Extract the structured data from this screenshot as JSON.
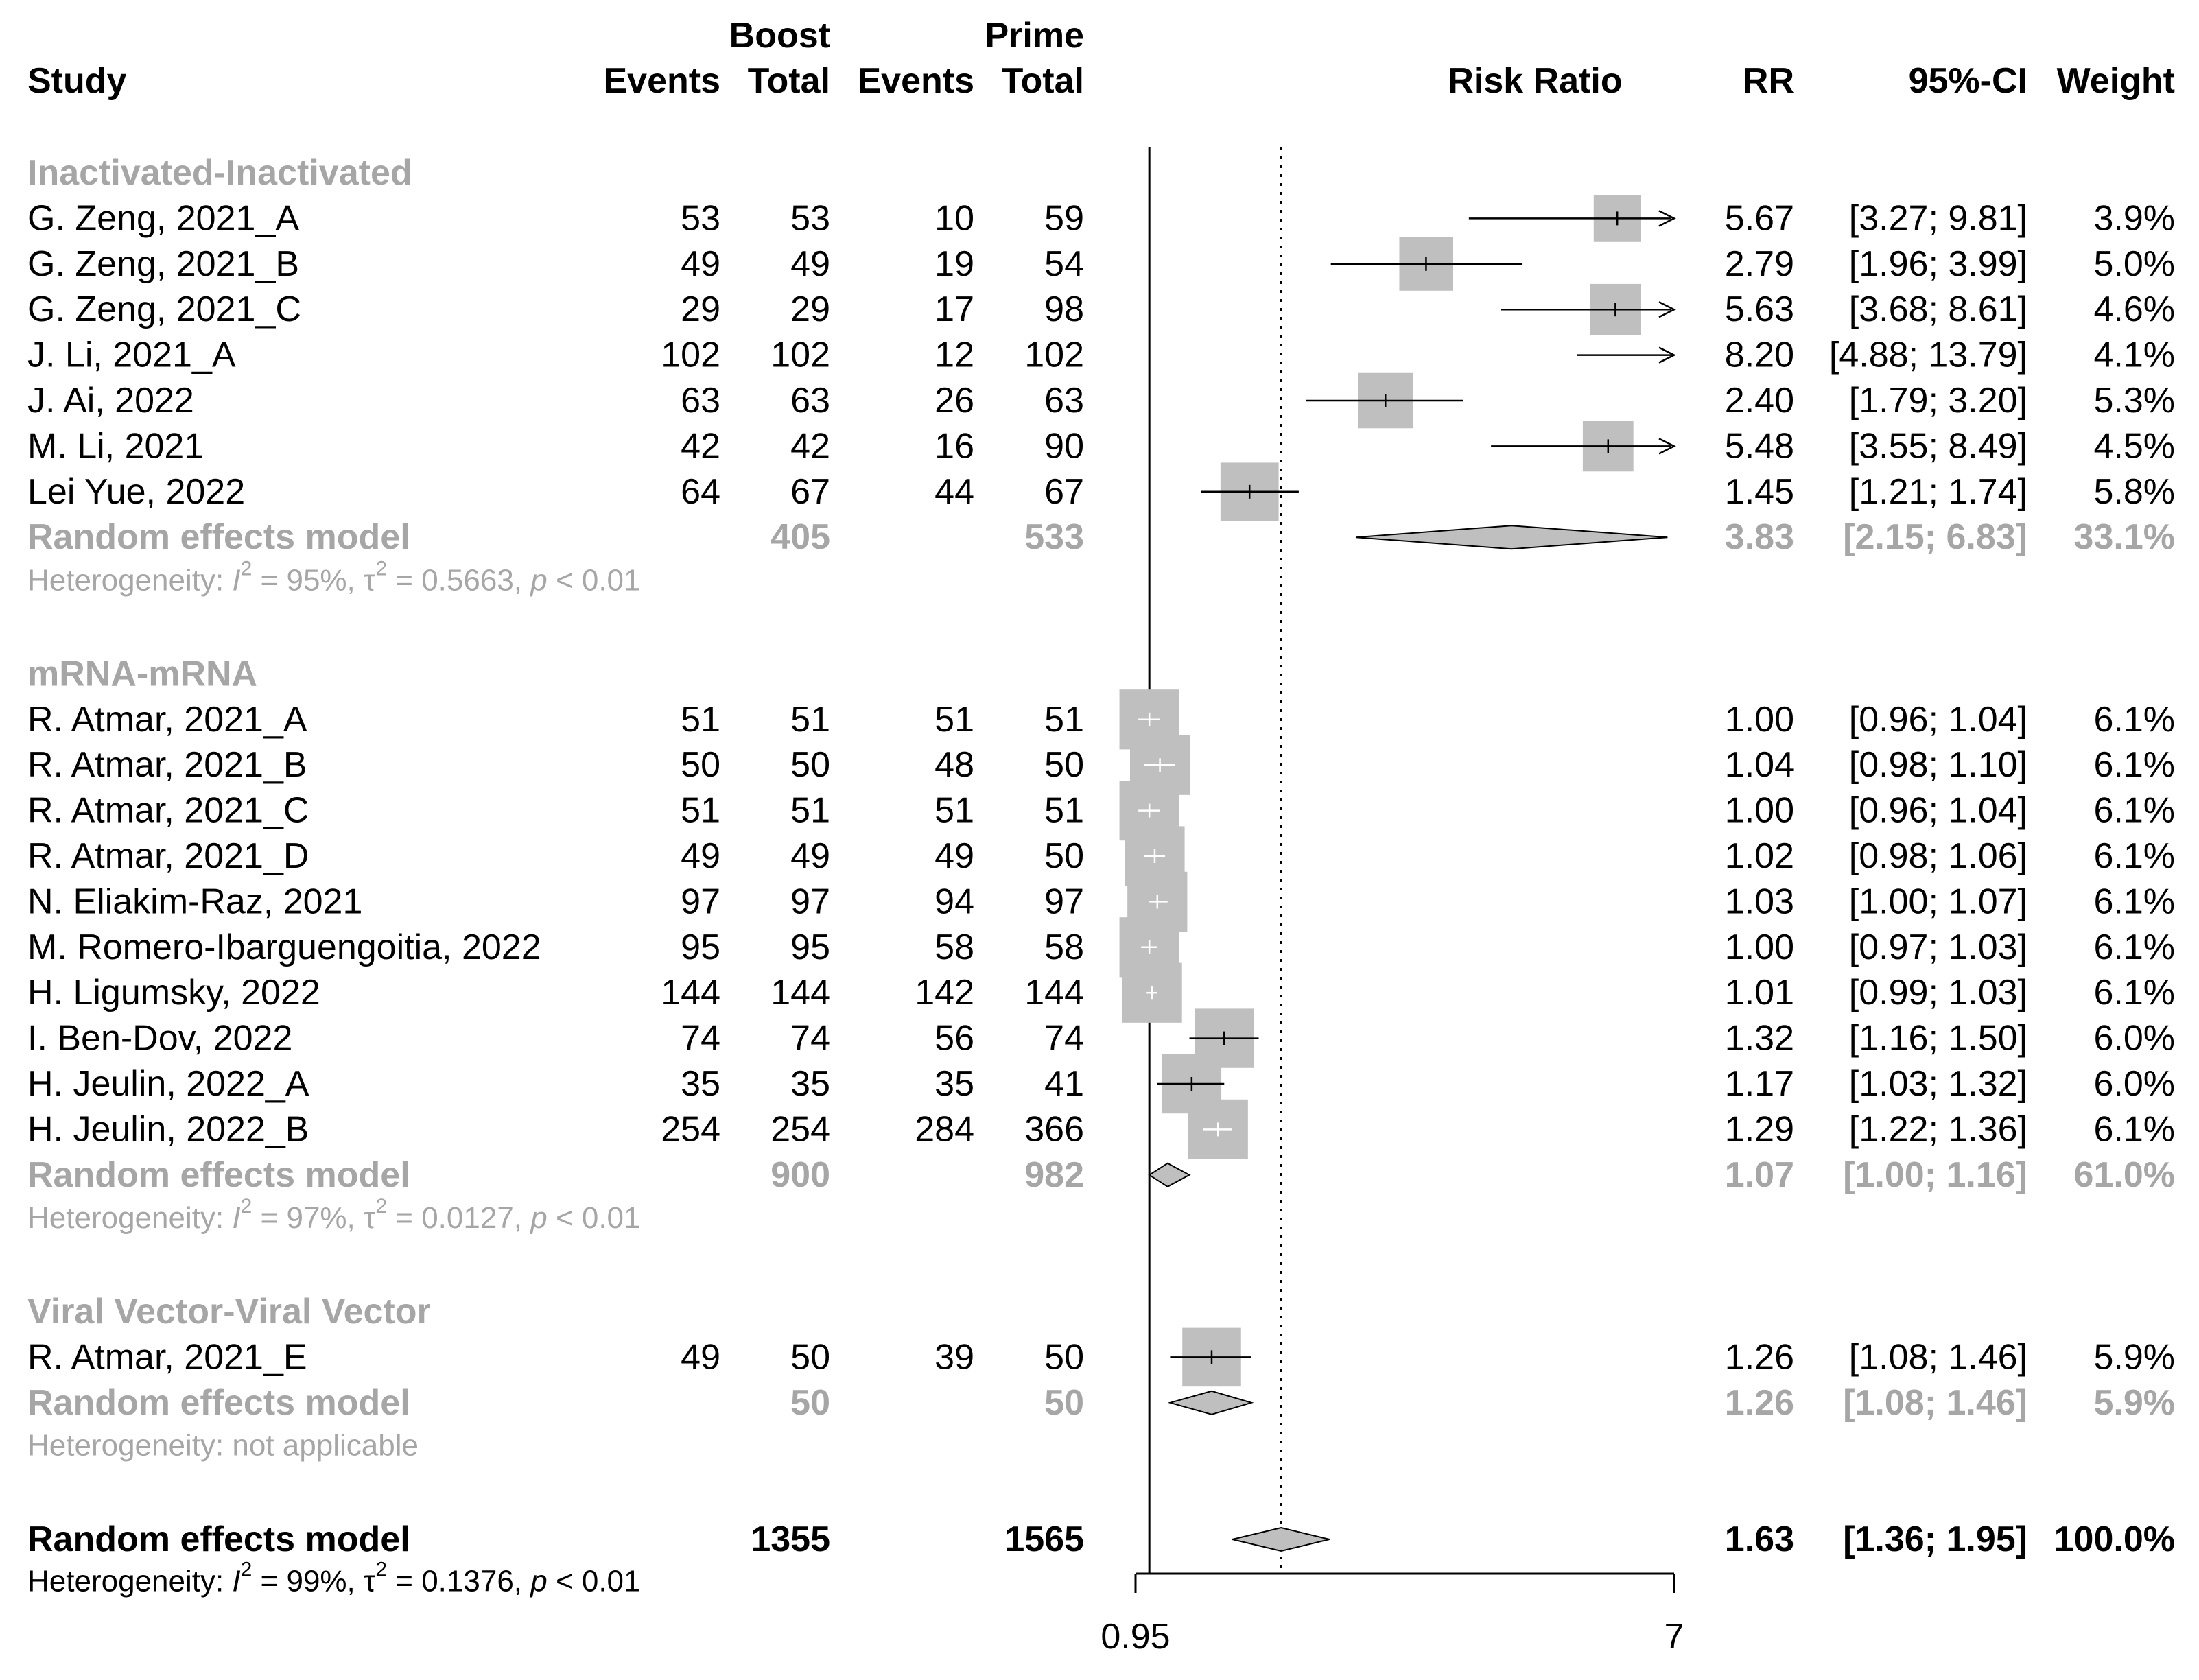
{
  "chart_data": {
    "type": "forest",
    "measure": "Risk Ratio",
    "axis": {
      "scale": "log",
      "xlim": [
        0.95,
        7
      ],
      "ticks": [
        "0.95",
        "7"
      ],
      "null_line": 1,
      "pooled_line": 1.63
    },
    "headers": {
      "study": "Study",
      "boost": "Boost",
      "prime": "Prime",
      "events": "Events",
      "total": "Total",
      "plot": "Risk Ratio",
      "rr": "RR",
      "ci": "95%-CI",
      "weight": "Weight"
    },
    "groups": [
      {
        "name": "Inactivated-Inactivated",
        "studies": [
          {
            "study": "G. Zeng, 2021_A",
            "be": "53",
            "bt": "53",
            "pe": "10",
            "pt": "59",
            "rr": 5.67,
            "lo": 3.27,
            "hi": 9.81,
            "rr_text": "5.67",
            "ci_text": "[3.27;  9.81]",
            "weight": "3.9%",
            "w": 3.9
          },
          {
            "study": "G. Zeng, 2021_B",
            "be": "49",
            "bt": "49",
            "pe": "19",
            "pt": "54",
            "rr": 2.79,
            "lo": 1.96,
            "hi": 3.99,
            "rr_text": "2.79",
            "ci_text": "[1.96;  3.99]",
            "weight": "5.0%",
            "w": 5.0
          },
          {
            "study": "G. Zeng, 2021_C",
            "be": "29",
            "bt": "29",
            "pe": "17",
            "pt": "98",
            "rr": 5.63,
            "lo": 3.68,
            "hi": 8.61,
            "rr_text": "5.63",
            "ci_text": "[3.68;  8.61]",
            "weight": "4.6%",
            "w": 4.6
          },
          {
            "study": "J. Li, 2021_A",
            "be": "102",
            "bt": "102",
            "pe": "12",
            "pt": "102",
            "rr": 8.2,
            "lo": 4.88,
            "hi": 13.79,
            "rr_text": "8.20",
            "ci_text": "[4.88; 13.79]",
            "weight": "4.1%",
            "w": 4.1
          },
          {
            "study": "J. Ai, 2022",
            "be": "63",
            "bt": "63",
            "pe": "26",
            "pt": "63",
            "rr": 2.4,
            "lo": 1.79,
            "hi": 3.2,
            "rr_text": "2.40",
            "ci_text": "[1.79;  3.20]",
            "weight": "5.3%",
            "w": 5.3
          },
          {
            "study": "M. Li, 2021",
            "be": "42",
            "bt": "42",
            "pe": "16",
            "pt": "90",
            "rr": 5.48,
            "lo": 3.55,
            "hi": 8.49,
            "rr_text": "5.48",
            "ci_text": "[3.55;  8.49]",
            "weight": "4.5%",
            "w": 4.5
          },
          {
            "study": "Lei Yue, 2022",
            "be": "64",
            "bt": "67",
            "pe": "44",
            "pt": "67",
            "rr": 1.45,
            "lo": 1.21,
            "hi": 1.74,
            "rr_text": "1.45",
            "ci_text": "[1.21;  1.74]",
            "weight": "5.8%",
            "w": 5.8
          }
        ],
        "pooled": {
          "label": "Random effects model",
          "bt": "405",
          "pt": "533",
          "rr": 3.83,
          "lo": 2.15,
          "hi": 6.83,
          "rr_text": "3.83",
          "ci_text": "[2.15;  6.83]",
          "weight": "33.1%"
        },
        "heterogeneity": {
          "prefix": "Heterogeneity: ",
          "i2": "I",
          "sup": "2",
          "mid": " = 95%, τ",
          "tau_sup": "2",
          "tail": " = 0.5663, ",
          "p": "p",
          "pval": " < 0.01"
        }
      },
      {
        "name": "mRNA-mRNA",
        "studies": [
          {
            "study": "R. Atmar, 2021_A",
            "be": "51",
            "bt": "51",
            "pe": "51",
            "pt": "51",
            "rr": 1.0,
            "lo": 0.96,
            "hi": 1.04,
            "rr_text": "1.00",
            "ci_text": "[0.96;  1.04]",
            "weight": "6.1%",
            "w": 6.1
          },
          {
            "study": "R. Atmar, 2021_B",
            "be": "50",
            "bt": "50",
            "pe": "48",
            "pt": "50",
            "rr": 1.04,
            "lo": 0.98,
            "hi": 1.1,
            "rr_text": "1.04",
            "ci_text": "[0.98;  1.10]",
            "weight": "6.1%",
            "w": 6.1
          },
          {
            "study": "R. Atmar, 2021_C",
            "be": "51",
            "bt": "51",
            "pe": "51",
            "pt": "51",
            "rr": 1.0,
            "lo": 0.96,
            "hi": 1.04,
            "rr_text": "1.00",
            "ci_text": "[0.96;  1.04]",
            "weight": "6.1%",
            "w": 6.1
          },
          {
            "study": "R. Atmar, 2021_D",
            "be": "49",
            "bt": "49",
            "pe": "49",
            "pt": "50",
            "rr": 1.02,
            "lo": 0.98,
            "hi": 1.06,
            "rr_text": "1.02",
            "ci_text": "[0.98;  1.06]",
            "weight": "6.1%",
            "w": 6.1
          },
          {
            "study": "N. Eliakim-Raz, 2021",
            "be": "97",
            "bt": "97",
            "pe": "94",
            "pt": "97",
            "rr": 1.03,
            "lo": 1.0,
            "hi": 1.07,
            "rr_text": "1.03",
            "ci_text": "[1.00;  1.07]",
            "weight": "6.1%",
            "w": 6.1
          },
          {
            "study": "M. Romero-Ibarguengoitia, 2022",
            "be": "95",
            "bt": "95",
            "pe": "58",
            "pt": "58",
            "rr": 1.0,
            "lo": 0.97,
            "hi": 1.03,
            "rr_text": "1.00",
            "ci_text": "[0.97;  1.03]",
            "weight": "6.1%",
            "w": 6.1
          },
          {
            "study": "H. Ligumsky, 2022",
            "be": "144",
            "bt": "144",
            "pe": "142",
            "pt": "144",
            "rr": 1.01,
            "lo": 0.99,
            "hi": 1.03,
            "rr_text": "1.01",
            "ci_text": "[0.99;  1.03]",
            "weight": "6.1%",
            "w": 6.1
          },
          {
            "study": "I. Ben-Dov, 2022",
            "be": "74",
            "bt": "74",
            "pe": "56",
            "pt": "74",
            "rr": 1.32,
            "lo": 1.16,
            "hi": 1.5,
            "rr_text": "1.32",
            "ci_text": "[1.16;  1.50]",
            "weight": "6.0%",
            "w": 6.0
          },
          {
            "study": "H. Jeulin, 2022_A",
            "be": "35",
            "bt": "35",
            "pe": "35",
            "pt": "41",
            "rr": 1.17,
            "lo": 1.03,
            "hi": 1.32,
            "rr_text": "1.17",
            "ci_text": "[1.03;  1.32]",
            "weight": "6.0%",
            "w": 6.0
          },
          {
            "study": "H. Jeulin, 2022_B",
            "be": "254",
            "bt": "254",
            "pe": "284",
            "pt": "366",
            "rr": 1.29,
            "lo": 1.22,
            "hi": 1.36,
            "rr_text": "1.29",
            "ci_text": "[1.22;  1.36]",
            "weight": "6.1%",
            "w": 6.1
          }
        ],
        "pooled": {
          "label": "Random effects model",
          "bt": "900",
          "pt": "982",
          "rr": 1.07,
          "lo": 1.0,
          "hi": 1.16,
          "rr_text": "1.07",
          "ci_text": "[1.00;  1.16]",
          "weight": "61.0%"
        },
        "heterogeneity": {
          "prefix": "Heterogeneity: ",
          "i2": "I",
          "sup": "2",
          "mid": " = 97%, τ",
          "tau_sup": "2",
          "tail": " = 0.0127, ",
          "p": "p",
          "pval": " < 0.01"
        }
      },
      {
        "name": "Viral Vector-Viral Vector",
        "studies": [
          {
            "study": "R. Atmar, 2021_E",
            "be": "49",
            "bt": "50",
            "pe": "39",
            "pt": "50",
            "rr": 1.26,
            "lo": 1.08,
            "hi": 1.46,
            "rr_text": "1.26",
            "ci_text": "[1.08;  1.46]",
            "weight": "5.9%",
            "w": 5.9
          }
        ],
        "pooled": {
          "label": "Random effects model",
          "bt": "50",
          "pt": "50",
          "rr": 1.26,
          "lo": 1.08,
          "hi": 1.46,
          "rr_text": "1.26",
          "ci_text": "[1.08;  1.46]",
          "weight": "5.9%"
        },
        "heterogeneity": {
          "text": "Heterogeneity: not applicable"
        }
      }
    ],
    "overall": {
      "label": "Random effects model",
      "bt": "1355",
      "pt": "1565",
      "rr": 1.63,
      "lo": 1.36,
      "hi": 1.95,
      "rr_text": "1.63",
      "ci_text": "[1.36;  1.95]",
      "weight": "100.0%",
      "heterogeneity": {
        "prefix": "Heterogeneity: ",
        "i2": "I",
        "sup": "2",
        "mid": " = 99%, τ",
        "tau_sup": "2",
        "tail": " = 0.1376, ",
        "p": "p",
        "pval": " < 0.01"
      }
    },
    "colors": {
      "text": "#000000",
      "subgroup": "#a6a6a6",
      "box": "#bfbfbf",
      "diamond": "#bfbfbf",
      "line": "#000000",
      "white_tick": "#ffffff"
    }
  }
}
